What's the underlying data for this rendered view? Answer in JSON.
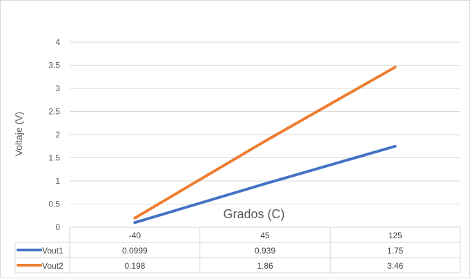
{
  "chart_data": {
    "type": "line",
    "title": "",
    "xlabel": "Grados (C)",
    "ylabel": "Voltaje (V)",
    "categories": [
      "-40",
      "45",
      "125"
    ],
    "ylim": [
      0,
      4
    ],
    "yticks": [
      "0",
      "0.5",
      "1",
      "1.5",
      "2",
      "2.5",
      "3",
      "3.5",
      "4"
    ],
    "grid": true,
    "legend": "data-table",
    "series": [
      {
        "name": "Vout1",
        "color": "#4472C4",
        "values": [
          0.0999,
          0.939,
          1.75
        ],
        "labels": [
          "0.0999",
          "0.939",
          "1.75"
        ]
      },
      {
        "name": "Vout2",
        "color": "#ED7D31",
        "values": [
          0.198,
          1.86,
          3.46
        ],
        "labels": [
          "0.198",
          "1.86",
          "3.46"
        ]
      }
    ]
  }
}
